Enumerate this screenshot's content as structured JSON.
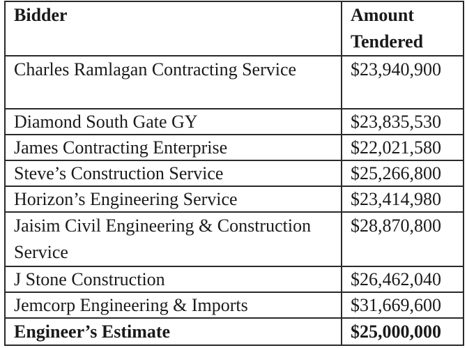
{
  "table": {
    "headers": {
      "bidder": "Bidder",
      "amount": "Amount Tendered"
    },
    "rows": [
      {
        "bidder": "Charles Ramlagan Contracting Service",
        "amount": "$23,940,900"
      },
      {
        "bidder": "Diamond South Gate GY",
        "amount": "$23,835,530"
      },
      {
        "bidder": "James Contracting Enterprise",
        "amount": "$22,021,580"
      },
      {
        "bidder": "Steve’s Construction Service",
        "amount": "$25,266,800"
      },
      {
        "bidder": "Horizon’s Engineering Service",
        "amount": "$23,414,980"
      },
      {
        "bidder": "Jaisim Civil Engineering & Construction Service",
        "amount": "$28,870,800"
      },
      {
        "bidder": "J Stone Construction",
        "amount": "$26,462,040"
      },
      {
        "bidder": "Jemcorp Engineering & Imports",
        "amount": "$31,669,600"
      }
    ],
    "total": {
      "bidder": "Engineer’s Estimate",
      "amount": "$25,000,000"
    }
  }
}
